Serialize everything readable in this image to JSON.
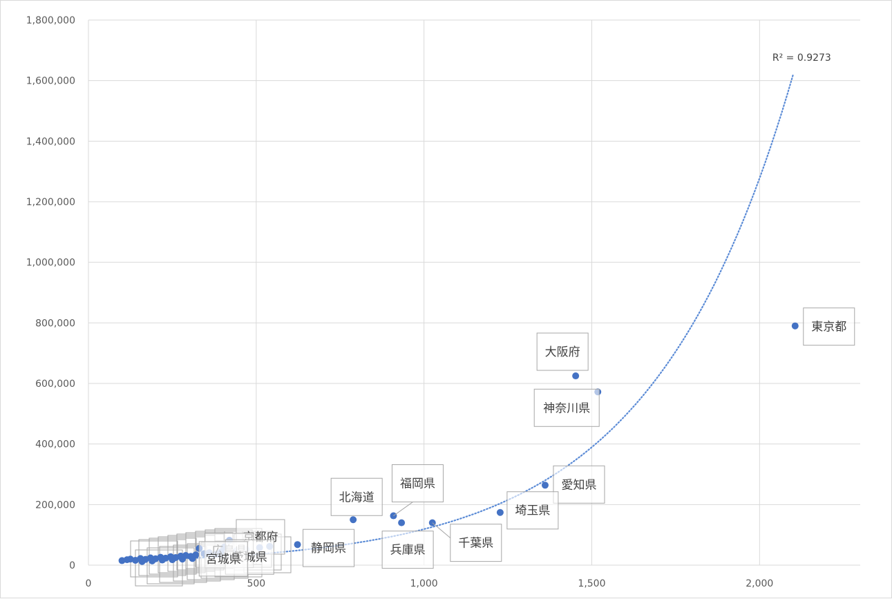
{
  "chart_data": {
    "type": "scatter",
    "title": "",
    "xlabel": "",
    "ylabel": "",
    "xlim": [
      0,
      2300
    ],
    "ylim": [
      0,
      1800000
    ],
    "x_ticks": [
      0,
      500,
      1000,
      1500,
      2000
    ],
    "x_tick_labels": [
      "0",
      "500",
      "1,000",
      "1,500",
      "2,000"
    ],
    "y_ticks": [
      0,
      200000,
      400000,
      600000,
      800000,
      1000000,
      1200000,
      1400000,
      1600000,
      1800000
    ],
    "y_tick_labels": [
      "0",
      "200,000",
      "400,000",
      "600,000",
      "800,000",
      "1,000,000",
      "1,200,000",
      "1,400,000",
      "1,600,000",
      "1,800,000"
    ],
    "grid": "vertical and horizontal major gridlines",
    "marker_color": "#4472c4",
    "trendline": {
      "type": "exponential",
      "style": "dotted",
      "color": "#5b8bd6",
      "r_squared_label": "R² = 0.9273",
      "x_range": [
        100,
        2100
      ],
      "y_at_start": 14000,
      "y_at_end": 1620000
    },
    "points": [
      {
        "label": "東京都",
        "x": 2106,
        "y": 790000
      },
      {
        "label": "大阪府",
        "x": 1452,
        "y": 625000
      },
      {
        "label": "神奈川県",
        "x": 1518,
        "y": 572000
      },
      {
        "label": "愛知県",
        "x": 1361,
        "y": 264000
      },
      {
        "label": "埼玉県",
        "x": 1227,
        "y": 174000
      },
      {
        "label": "千葉県",
        "x": 1025,
        "y": 140000
      },
      {
        "label": "兵庫県",
        "x": 933,
        "y": 140000
      },
      {
        "label": "福岡県",
        "x": 909,
        "y": 163000
      },
      {
        "label": "北海道",
        "x": 789,
        "y": 150000
      },
      {
        "label": "静岡県",
        "x": 623,
        "y": 68000
      },
      {
        "label": "京都府",
        "x": 420,
        "y": 82000
      },
      {
        "label": "広島県",
        "x": 405,
        "y": 60000
      },
      {
        "label": "茨城県",
        "x": 470,
        "y": 52000
      },
      {
        "label": "宮城県",
        "x": 330,
        "y": 55000
      },
      {
        "label": "",
        "x": 100,
        "y": 15000
      },
      {
        "label": "",
        "x": 115,
        "y": 18000
      },
      {
        "label": "",
        "x": 125,
        "y": 20000
      },
      {
        "label": "",
        "x": 140,
        "y": 16000
      },
      {
        "label": "",
        "x": 155,
        "y": 22000
      },
      {
        "label": "",
        "x": 170,
        "y": 19000
      },
      {
        "label": "",
        "x": 185,
        "y": 24000
      },
      {
        "label": "",
        "x": 200,
        "y": 21000
      },
      {
        "label": "",
        "x": 215,
        "y": 26000
      },
      {
        "label": "",
        "x": 230,
        "y": 23000
      },
      {
        "label": "",
        "x": 245,
        "y": 28000
      },
      {
        "label": "",
        "x": 260,
        "y": 25000
      },
      {
        "label": "",
        "x": 275,
        "y": 30000
      },
      {
        "label": "",
        "x": 290,
        "y": 32000
      },
      {
        "label": "",
        "x": 305,
        "y": 29000
      },
      {
        "label": "",
        "x": 320,
        "y": 34000
      },
      {
        "label": "",
        "x": 345,
        "y": 38000
      },
      {
        "label": "",
        "x": 360,
        "y": 41000
      },
      {
        "label": "",
        "x": 380,
        "y": 36000
      },
      {
        "label": "",
        "x": 395,
        "y": 44000
      },
      {
        "label": "",
        "x": 440,
        "y": 47000
      },
      {
        "label": "",
        "x": 510,
        "y": 58000
      },
      {
        "label": "",
        "x": 540,
        "y": 62000
      },
      {
        "label": "",
        "x": 160,
        "y": 12000
      },
      {
        "label": "",
        "x": 190,
        "y": 14000
      },
      {
        "label": "",
        "x": 220,
        "y": 17000
      },
      {
        "label": "",
        "x": 250,
        "y": 18000
      },
      {
        "label": "",
        "x": 280,
        "y": 20000
      },
      {
        "label": "",
        "x": 310,
        "y": 22000
      }
    ]
  }
}
